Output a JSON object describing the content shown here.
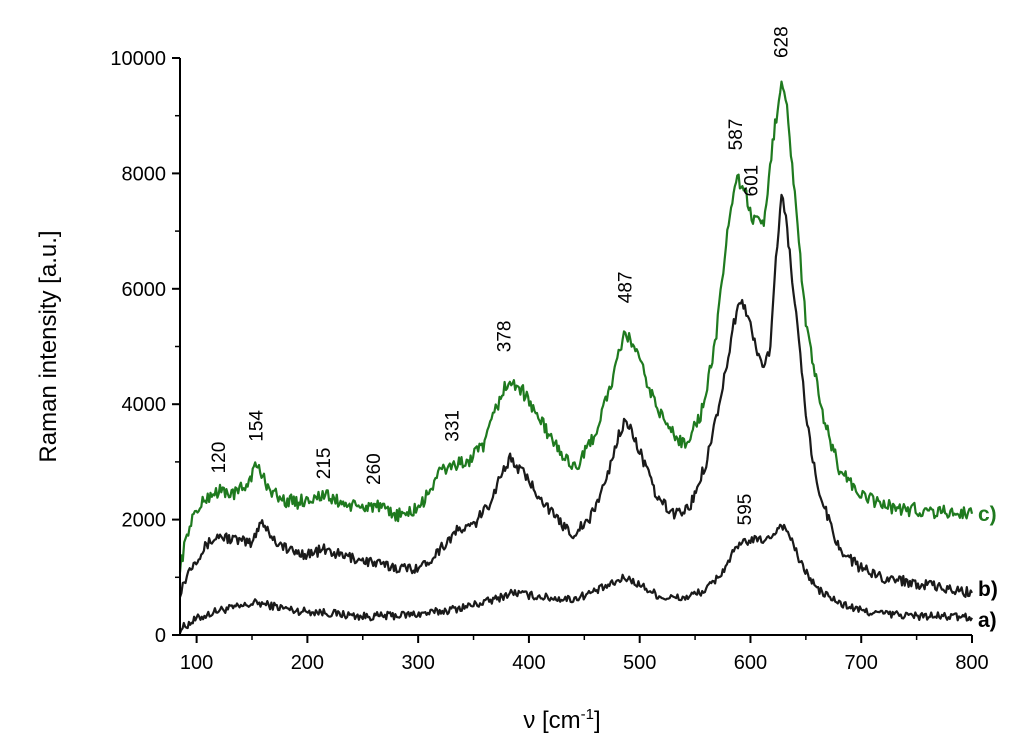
{
  "chart_data": {
    "type": "line",
    "title": "",
    "xlabel": "ν [cm-1]",
    "xlabel_symbol": "ν [cm",
    "xlabel_exp": "-1",
    "xlabel_close": "]",
    "ylabel": "Raman intensity [a.u.]",
    "xlim": [
      85,
      800
    ],
    "ylim": [
      0,
      10000
    ],
    "x_ticks": [
      100,
      200,
      300,
      400,
      500,
      600,
      700,
      800
    ],
    "y_ticks": [
      0,
      2000,
      4000,
      6000,
      8000,
      10000
    ],
    "grid": false,
    "legend": "none",
    "series": [
      {
        "name": "a)",
        "color": "#1a1a1a",
        "x": [
          85,
          100,
          120,
          140,
          154,
          170,
          190,
          210,
          230,
          250,
          270,
          290,
          310,
          330,
          350,
          370,
          385,
          400,
          420,
          440,
          460,
          475,
          487,
          500,
          520,
          540,
          560,
          575,
          585,
          595,
          605,
          615,
          622,
          628,
          635,
          645,
          660,
          680,
          700,
          720,
          750,
          780,
          800
        ],
        "y": [
          100,
          280,
          430,
          490,
          560,
          500,
          420,
          400,
          360,
          320,
          330,
          350,
          380,
          440,
          520,
          620,
          740,
          690,
          640,
          620,
          760,
          880,
          1000,
          870,
          650,
          640,
          780,
          1100,
          1450,
          1620,
          1650,
          1650,
          1780,
          1920,
          1750,
          1250,
          800,
          550,
          420,
          370,
          330,
          320,
          300
        ]
      },
      {
        "name": "b)",
        "color": "#1a1a1a",
        "x": [
          85,
          95,
          110,
          120,
          135,
          150,
          158,
          170,
          185,
          200,
          215,
          230,
          250,
          270,
          290,
          305,
          320,
          335,
          350,
          365,
          375,
          383,
          395,
          410,
          425,
          440,
          455,
          470,
          480,
          487,
          500,
          515,
          530,
          545,
          560,
          575,
          585,
          590,
          595,
          605,
          612,
          618,
          623,
          628,
          632,
          640,
          650,
          660,
          680,
          700,
          720,
          750,
          780,
          800
        ],
        "y": [
          750,
          1200,
          1580,
          1720,
          1650,
          1580,
          2000,
          1650,
          1450,
          1400,
          1480,
          1380,
          1300,
          1200,
          1150,
          1200,
          1500,
          1800,
          1900,
          2300,
          2800,
          3050,
          2800,
          2400,
          2000,
          1750,
          2000,
          2700,
          3400,
          3750,
          3200,
          2400,
          2100,
          2200,
          3000,
          4300,
          5400,
          5750,
          5700,
          5000,
          4600,
          5000,
          6500,
          7650,
          7200,
          5800,
          3800,
          2600,
          1500,
          1150,
          1000,
          900,
          780,
          730
        ]
      },
      {
        "name": "c)",
        "color": "#1f7a1f",
        "x": [
          85,
          95,
          110,
          120,
          135,
          145,
          154,
          162,
          175,
          190,
          205,
          215,
          230,
          245,
          260,
          275,
          290,
          305,
          318,
          331,
          345,
          360,
          370,
          378,
          390,
          405,
          420,
          435,
          445,
          460,
          475,
          487,
          495,
          510,
          525,
          540,
          555,
          568,
          578,
          587,
          595,
          601,
          606,
          612,
          620,
          628,
          633,
          640,
          650,
          665,
          680,
          700,
          730,
          760,
          800
        ],
        "y": [
          1200,
          2000,
          2400,
          2500,
          2450,
          2600,
          2950,
          2650,
          2350,
          2300,
          2380,
          2420,
          2300,
          2200,
          2250,
          2100,
          2080,
          2300,
          2800,
          2950,
          3000,
          3300,
          3900,
          4300,
          4350,
          3900,
          3400,
          3000,
          2950,
          3500,
          4400,
          5250,
          5000,
          4200,
          3600,
          3300,
          3800,
          5000,
          6800,
          7950,
          7700,
          7250,
          7150,
          7050,
          8500,
          9650,
          9200,
          7600,
          5400,
          3800,
          2900,
          2400,
          2200,
          2150,
          2100
        ]
      }
    ],
    "peak_labels": [
      {
        "text": "120",
        "x": 120,
        "y": 2800
      },
      {
        "text": "154",
        "x": 154,
        "y": 3350
      },
      {
        "text": "215",
        "x": 215,
        "y": 2700
      },
      {
        "text": "260",
        "x": 260,
        "y": 2600
      },
      {
        "text": "331",
        "x": 331,
        "y": 3350
      },
      {
        "text": "378",
        "x": 378,
        "y": 4900
      },
      {
        "text": "487",
        "x": 487,
        "y": 5750
      },
      {
        "text": "587",
        "x": 587,
        "y": 8400
      },
      {
        "text": "601",
        "x": 601,
        "y": 7600
      },
      {
        "text": "628",
        "x": 628,
        "y": 10000
      },
      {
        "text": "595",
        "x": 595,
        "y": 1900
      }
    ],
    "curve_labels": [
      {
        "text": "a)",
        "y": 260,
        "color": "#000000"
      },
      {
        "text": "b)",
        "y": 800,
        "color": "#000000"
      },
      {
        "text": "c)",
        "y": 2100,
        "color": "#1f7a1f"
      }
    ]
  }
}
